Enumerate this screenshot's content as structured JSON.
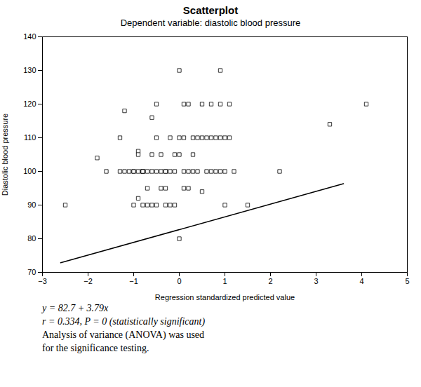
{
  "chart_data": {
    "type": "scatter",
    "title": "Scatterplot",
    "subtitle": "Dependent variable: diastolic blood pressure",
    "xlabel": "Regression standardized predicted value",
    "ylabel": "Diastolic blood pressure",
    "xlim": [
      -3,
      5
    ],
    "ylim": [
      70,
      140
    ],
    "xticks": [
      -3,
      -2,
      -1,
      0,
      1,
      2,
      3,
      4,
      5
    ],
    "yticks": [
      70,
      80,
      90,
      100,
      110,
      120,
      130,
      140
    ],
    "grid": false,
    "series": [
      {
        "type": "scatter",
        "marker": "square",
        "color": "black",
        "x": [
          -2.5,
          -1.8,
          -1.6,
          -1.3,
          -1.3,
          -1.2,
          -1.2,
          -1.1,
          -1.0,
          -1.0,
          -1.0,
          -0.9,
          -0.9,
          -0.9,
          -0.9,
          -0.8,
          -0.8,
          -0.8,
          -0.8,
          -0.8,
          -0.7,
          -0.7,
          -0.7,
          -0.6,
          -0.6,
          -0.6,
          -0.6,
          -0.5,
          -0.5,
          -0.5,
          -0.5,
          -0.4,
          -0.4,
          -0.4,
          -0.3,
          -0.3,
          -0.3,
          -0.3,
          -0.2,
          -0.2,
          -0.2,
          -0.1,
          -0.1,
          -0.1,
          0.0,
          0.0,
          0.0,
          0.0,
          0.1,
          0.1,
          0.1,
          0.1,
          0.2,
          0.2,
          0.2,
          0.3,
          0.3,
          0.3,
          0.4,
          0.4,
          0.5,
          0.5,
          0.5,
          0.6,
          0.6,
          0.7,
          0.7,
          0.7,
          0.8,
          0.8,
          0.9,
          0.9,
          0.9,
          0.9,
          1.0,
          1.0,
          1.0,
          1.1,
          1.1,
          1.2,
          1.5,
          2.2,
          3.3,
          4.1
        ],
        "values": [
          90,
          104,
          100,
          110,
          100,
          118,
          100,
          100,
          100,
          100,
          90,
          106,
          105,
          100,
          92,
          100,
          100,
          100,
          100,
          90,
          100,
          95,
          90,
          116,
          105,
          100,
          90,
          120,
          110,
          100,
          90,
          105,
          100,
          95,
          100,
          100,
          95,
          90,
          110,
          100,
          90,
          105,
          100,
          90,
          130,
          110,
          105,
          80,
          120,
          110,
          100,
          95,
          120,
          100,
          95,
          110,
          105,
          100,
          110,
          100,
          120,
          110,
          94,
          110,
          100,
          120,
          110,
          100,
          110,
          100,
          130,
          120,
          110,
          100,
          110,
          100,
          90,
          120,
          110,
          100,
          90,
          100,
          114,
          120
        ]
      },
      {
        "type": "line",
        "line_style": "solid",
        "color": "black",
        "x": [
          -2.6,
          3.6
        ],
        "values": [
          72.846,
          96.344
        ]
      }
    ],
    "annotations": [
      "y = 82.7 + 3.79x",
      "r = 0.334, P = 0 (statistically significant)",
      "Analysis of variance (ANOVA) was used",
      "for the significance testing."
    ]
  }
}
